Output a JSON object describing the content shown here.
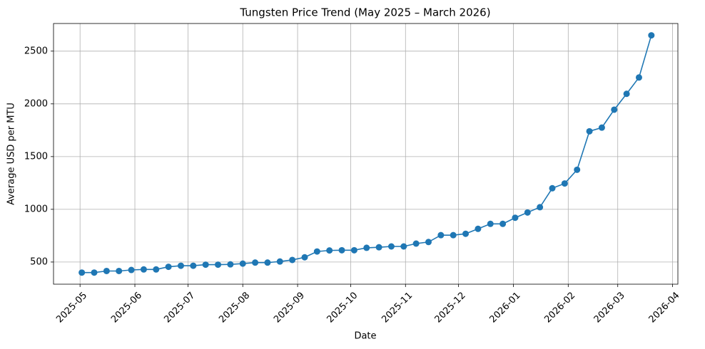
{
  "chart_data": {
    "type": "line",
    "title": "Tungsten Price Trend (May 2025 – March 2026)",
    "x_label": "Date",
    "y_label": "Average USD per MTU",
    "x": [
      "2025-05-02",
      "2025-05-09",
      "2025-05-16",
      "2025-05-23",
      "2025-05-30",
      "2025-06-06",
      "2025-06-13",
      "2025-06-20",
      "2025-06-27",
      "2025-07-04",
      "2025-07-11",
      "2025-07-18",
      "2025-07-25",
      "2025-08-01",
      "2025-08-08",
      "2025-08-15",
      "2025-08-22",
      "2025-08-29",
      "2025-09-05",
      "2025-09-12",
      "2025-09-19",
      "2025-09-26",
      "2025-10-03",
      "2025-10-10",
      "2025-10-17",
      "2025-10-24",
      "2025-10-31",
      "2025-11-07",
      "2025-11-14",
      "2025-11-21",
      "2025-11-28",
      "2025-12-05",
      "2025-12-12",
      "2025-12-19",
      "2025-12-26",
      "2026-01-02",
      "2026-01-09",
      "2026-01-16",
      "2026-01-23",
      "2026-01-30",
      "2026-02-06",
      "2026-02-13",
      "2026-02-20",
      "2026-02-27",
      "2026-03-06",
      "2026-03-13",
      "2026-03-20"
    ],
    "values": [
      400,
      400,
      415,
      415,
      425,
      430,
      430,
      455,
      465,
      465,
      475,
      475,
      478,
      485,
      495,
      495,
      505,
      520,
      545,
      600,
      610,
      612,
      612,
      635,
      640,
      648,
      648,
      675,
      690,
      755,
      755,
      768,
      815,
      862,
      862,
      920,
      970,
      1020,
      1200,
      1245,
      1375,
      1740,
      1775,
      1945,
      2095,
      2250,
      2650
    ],
    "color": "#1f77b4",
    "xlim": [
      "2025-04-16",
      "2026-04-04"
    ],
    "xticks": [
      {
        "value": "2025-05-01",
        "label": "2025-05"
      },
      {
        "value": "2025-06-01",
        "label": "2025-06"
      },
      {
        "value": "2025-07-01",
        "label": "2025-07"
      },
      {
        "value": "2025-08-01",
        "label": "2025-08"
      },
      {
        "value": "2025-09-01",
        "label": "2025-09"
      },
      {
        "value": "2025-10-01",
        "label": "2025-10"
      },
      {
        "value": "2025-11-01",
        "label": "2025-11"
      },
      {
        "value": "2025-12-01",
        "label": "2025-12"
      },
      {
        "value": "2026-01-01",
        "label": "2026-01"
      },
      {
        "value": "2026-02-01",
        "label": "2026-02"
      },
      {
        "value": "2026-03-01",
        "label": "2026-03"
      },
      {
        "value": "2026-04-01",
        "label": "2026-04"
      }
    ],
    "ylim": [
      290,
      2762
    ],
    "yticks": [
      500,
      1000,
      1500,
      2000,
      2500
    ],
    "grid": true
  }
}
